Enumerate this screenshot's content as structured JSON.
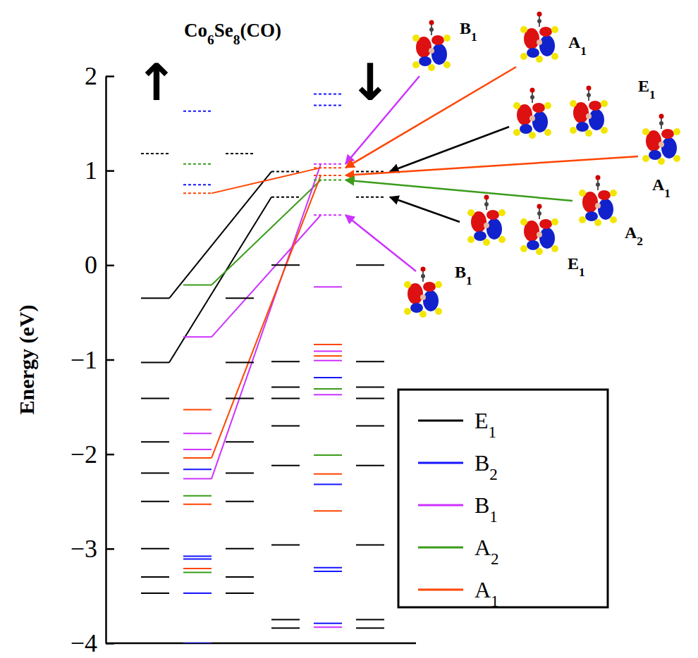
{
  "chart_data": {
    "type": "energy_levels",
    "title": "Co6Se8(CO)",
    "y_label": "Energy (eV)",
    "ylim": [
      -4,
      2
    ],
    "yticks": [
      {
        "value": -4,
        "label": "−4"
      },
      {
        "value": -3,
        "label": "−3"
      },
      {
        "value": -2,
        "label": "−2"
      },
      {
        "value": -1,
        "label": "−1"
      },
      0,
      1,
      2
    ],
    "legend": "bottom-right",
    "series": [
      {
        "name": "E1",
        "color": "#000000"
      },
      {
        "name": "B2",
        "color": "#1515ff"
      },
      {
        "name": "B1",
        "color": "#cc33ff"
      },
      {
        "name": "A2",
        "color": "#3a9c1a"
      },
      {
        "name": "A1",
        "color": "#ff4500"
      }
    ],
    "panels": [
      {
        "label": "↑",
        "series": [
          {
            "line_style": "solid",
            "levels": [
              {
                "symmetry": "E1",
                "energy": -0.35
              },
              {
                "symmetry": "E1",
                "energy": -1.03
              },
              {
                "symmetry": "E1",
                "energy": -1.41
              },
              {
                "symmetry": "E1",
                "energy": -1.87
              },
              {
                "symmetry": "E1",
                "energy": -2.2
              },
              {
                "symmetry": "E1",
                "energy": -2.5
              },
              {
                "symmetry": "E1",
                "energy": -3.0
              },
              {
                "symmetry": "E1",
                "energy": -3.3
              },
              {
                "symmetry": "E1",
                "energy": -3.47
              },
              {
                "symmetry": "A2",
                "energy": -0.21
              },
              {
                "symmetry": "B1",
                "energy": -0.76
              },
              {
                "symmetry": "A1",
                "energy": -1.53
              },
              {
                "symmetry": "B1",
                "energy": -1.78
              },
              {
                "symmetry": "B1",
                "energy": -1.95
              },
              {
                "symmetry": "A1",
                "energy": -2.04
              },
              {
                "symmetry": "B2",
                "energy": -2.16
              },
              {
                "symmetry": "B1",
                "energy": -2.26
              },
              {
                "symmetry": "A2",
                "energy": -2.44
              },
              {
                "symmetry": "A1",
                "energy": -2.53
              },
              {
                "symmetry": "B2",
                "energy": -3.08
              },
              {
                "symmetry": "B2",
                "energy": -3.11
              },
              {
                "symmetry": "A1",
                "energy": -3.21
              },
              {
                "symmetry": "A2",
                "energy": -3.25
              },
              {
                "symmetry": "B2",
                "energy": -3.47
              },
              {
                "symmetry": "B2",
                "energy": -4.0
              }
            ]
          },
          {
            "line_style": "dotted",
            "levels": [
              {
                "symmetry": "E1",
                "energy": 1.18
              },
              {
                "symmetry": "B2",
                "energy": 1.63
              },
              {
                "symmetry": "A2",
                "energy": 1.07
              },
              {
                "symmetry": "B2",
                "energy": 0.85
              },
              {
                "symmetry": "A1",
                "energy": 0.76
              }
            ]
          }
        ]
      },
      {
        "label": "↓",
        "series": [
          {
            "line_style": "solid",
            "levels": [
              {
                "symmetry": "E1",
                "energy": 0.0
              },
              {
                "symmetry": "E1",
                "energy": -1.02
              },
              {
                "symmetry": "E1",
                "energy": -1.29
              },
              {
                "symmetry": "E1",
                "energy": -1.41
              },
              {
                "symmetry": "E1",
                "energy": -1.7
              },
              {
                "symmetry": "E1",
                "energy": -2.12
              },
              {
                "symmetry": "E1",
                "energy": -2.96
              },
              {
                "symmetry": "E1",
                "energy": -3.75
              },
              {
                "symmetry": "E1",
                "energy": -3.84
              },
              {
                "symmetry": "B1",
                "energy": -0.23
              },
              {
                "symmetry": "A1",
                "energy": -0.84
              },
              {
                "symmetry": "B1",
                "energy": -0.91
              },
              {
                "symmetry": "A1",
                "energy": -0.96
              },
              {
                "symmetry": "B1",
                "energy": -1.01
              },
              {
                "symmetry": "B2",
                "energy": -1.19
              },
              {
                "symmetry": "A2",
                "energy": -1.31
              },
              {
                "symmetry": "B1",
                "energy": -1.37
              },
              {
                "symmetry": "A2",
                "energy": -2.01
              },
              {
                "symmetry": "A1",
                "energy": -2.21
              },
              {
                "symmetry": "B2",
                "energy": -2.32
              },
              {
                "symmetry": "A1",
                "energy": -2.6
              },
              {
                "symmetry": "B2",
                "energy": -3.2
              },
              {
                "symmetry": "B2",
                "energy": -3.24
              },
              {
                "symmetry": "B2",
                "energy": -3.79
              },
              {
                "symmetry": "B1",
                "energy": -3.83
              }
            ]
          },
          {
            "line_style": "dotted",
            "levels": [
              {
                "symmetry": "E1",
                "energy": 0.99
              },
              {
                "symmetry": "E1",
                "energy": 0.72
              },
              {
                "symmetry": "B2",
                "energy": 1.81
              },
              {
                "symmetry": "B2",
                "energy": 1.69
              },
              {
                "symmetry": "B1",
                "energy": 1.07
              },
              {
                "symmetry": "A1",
                "energy": 1.03
              },
              {
                "symmetry": "A1",
                "energy": 0.95
              },
              {
                "symmetry": "A2",
                "energy": 0.9
              },
              {
                "symmetry": "B1",
                "energy": 0.53
              }
            ]
          }
        ]
      }
    ],
    "correlations": [
      {
        "symmetry": "E1",
        "from": -0.35,
        "to": 0.99
      },
      {
        "symmetry": "E1",
        "from": -1.03,
        "to": 0.72
      },
      {
        "symmetry": "A2",
        "from": -0.21,
        "to": 0.9
      },
      {
        "symmetry": "A1",
        "from": 0.76,
        "to": 1.03
      },
      {
        "symmetry": "B1",
        "from": -0.76,
        "to": 0.53
      },
      {
        "symmetry": "B1",
        "from": -2.26,
        "to": 1.07
      },
      {
        "symmetry": "A1",
        "from": -2.04,
        "to": 0.95
      }
    ],
    "annotations": [
      {
        "label": "B1",
        "energy": 1.07
      },
      {
        "label": "A1",
        "energy": 1.03
      },
      {
        "label": "E1",
        "energy": 0.99
      },
      {
        "label": "A1",
        "energy": 0.95
      },
      {
        "label": "A2",
        "energy": 0.9
      },
      {
        "label": "E1",
        "energy": 0.72
      },
      {
        "label": "B1",
        "energy": 0.53
      }
    ]
  }
}
